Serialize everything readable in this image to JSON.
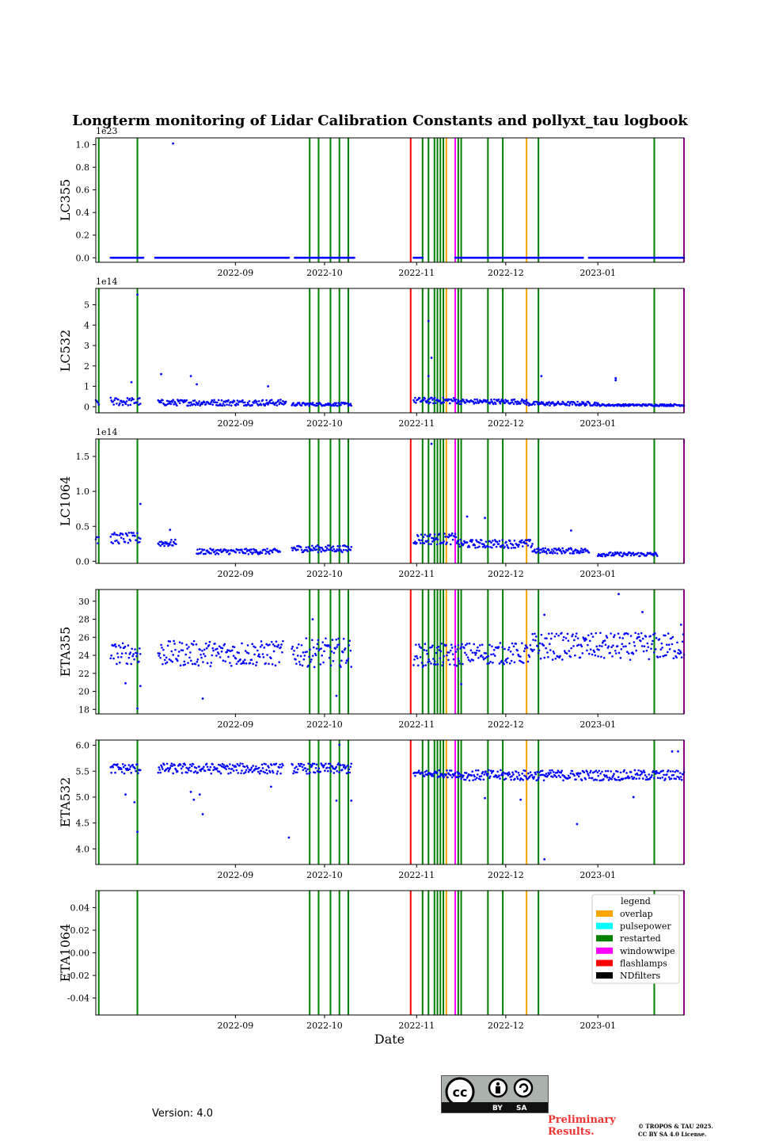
{
  "chart_data": {
    "type": "scatter",
    "title": "Longterm monitoring of Lidar Calibration Constants and pollyxt_tau logbook",
    "xlabel": "Date",
    "x_start": "2022-07-16",
    "x_end": "2023-01-30",
    "x_ticks": [
      {
        "date": "2022-09-01",
        "label": "2022-09"
      },
      {
        "date": "2022-10-01",
        "label": "2022-10"
      },
      {
        "date": "2022-11-01",
        "label": "2022-11"
      },
      {
        "date": "2022-12-01",
        "label": "2022-12"
      },
      {
        "date": "2023-01-01",
        "label": "2023-01"
      }
    ],
    "point_color": "#0000ff",
    "legend": {
      "title": "legend",
      "location": "upper right of last panel",
      "entries": [
        {
          "label": "overlap",
          "color": "#ffa500"
        },
        {
          "label": "pulsepower",
          "color": "#00ffff"
        },
        {
          "label": "restarted",
          "color": "#008000"
        },
        {
          "label": "windowwipe",
          "color": "#ff00ff"
        },
        {
          "label": "flashlamps",
          "color": "#ff0000"
        },
        {
          "label": "NDfilters",
          "color": "#000000"
        }
      ]
    },
    "logbook_events": [
      {
        "date": "2022-07-17",
        "type": "restarted"
      },
      {
        "date": "2022-07-30",
        "type": "restarted"
      },
      {
        "date": "2022-09-26",
        "type": "restarted"
      },
      {
        "date": "2022-09-29",
        "type": "restarted"
      },
      {
        "date": "2022-10-03",
        "type": "restarted"
      },
      {
        "date": "2022-10-06",
        "type": "restarted"
      },
      {
        "date": "2022-10-09",
        "type": "restarted"
      },
      {
        "date": "2022-10-30",
        "type": "flashlamps"
      },
      {
        "date": "2022-11-03",
        "type": "restarted"
      },
      {
        "date": "2022-11-05",
        "type": "restarted"
      },
      {
        "date": "2022-11-07",
        "type": "restarted"
      },
      {
        "date": "2022-11-08",
        "type": "restarted"
      },
      {
        "date": "2022-11-09",
        "type": "restarted"
      },
      {
        "date": "2022-11-10",
        "type": "restarted"
      },
      {
        "date": "2022-11-11",
        "type": "overlap"
      },
      {
        "date": "2022-11-14",
        "type": "windowwipe"
      },
      {
        "date": "2022-11-15",
        "type": "restarted"
      },
      {
        "date": "2022-11-16",
        "type": "restarted"
      },
      {
        "date": "2022-11-25",
        "type": "restarted"
      },
      {
        "date": "2022-11-30",
        "type": "restarted"
      },
      {
        "date": "2022-12-08",
        "type": "overlap"
      },
      {
        "date": "2022-12-12",
        "type": "restarted"
      },
      {
        "date": "2023-01-20",
        "type": "restarted"
      },
      {
        "date": "2023-01-30",
        "type": "windowwipe"
      }
    ],
    "panels": [
      {
        "ylabel": "LC355",
        "ylim": [
          -0.04,
          1.06
        ],
        "yticks": [
          0.0,
          0.2,
          0.4,
          0.6,
          0.8,
          1.0
        ],
        "tick_decimals": 1,
        "offset_label": "1e23",
        "segments": [
          {
            "start": "2022-07-21",
            "end": "2022-08-01",
            "base": 0.0,
            "spread": 0
          },
          {
            "start": "2022-08-05",
            "end": "2022-09-19",
            "base": 0.0,
            "spread": 0
          },
          {
            "start": "2022-09-21",
            "end": "2022-10-11",
            "base": 0.0,
            "spread": 0
          },
          {
            "start": "2022-10-31",
            "end": "2022-11-03",
            "base": 0.0,
            "spread": 0
          },
          {
            "start": "2022-11-14",
            "end": "2022-12-27",
            "base": 0.0,
            "spread": 0
          },
          {
            "start": "2022-12-29",
            "end": "2023-01-30",
            "base": 0.0,
            "spread": 0
          }
        ],
        "outliers": [
          {
            "date": "2022-08-11",
            "value": 1.01
          }
        ]
      },
      {
        "ylabel": "LC532",
        "ylim": [
          -0.3,
          5.8
        ],
        "yticks": [
          0,
          1,
          2,
          3,
          4,
          5
        ],
        "tick_decimals": 0,
        "offset_label": "1e14",
        "segments": [
          {
            "start": "2022-07-16",
            "end": "2022-07-17",
            "base": 0.2,
            "spread": 0.15
          },
          {
            "start": "2022-07-21",
            "end": "2022-07-31",
            "base": 0.25,
            "spread": 0.2
          },
          {
            "start": "2022-08-06",
            "end": "2022-09-18",
            "base": 0.2,
            "spread": 0.15
          },
          {
            "start": "2022-09-20",
            "end": "2022-10-10",
            "base": 0.12,
            "spread": 0.08
          },
          {
            "start": "2022-10-31",
            "end": "2022-11-15",
            "base": 0.3,
            "spread": 0.15
          },
          {
            "start": "2022-11-15",
            "end": "2022-12-08",
            "base": 0.25,
            "spread": 0.12
          },
          {
            "start": "2022-12-08",
            "end": "2023-01-01",
            "base": 0.15,
            "spread": 0.1
          },
          {
            "start": "2023-01-01",
            "end": "2023-01-30",
            "base": 0.08,
            "spread": 0.05
          }
        ],
        "outliers": [
          {
            "date": "2022-07-30",
            "value": 5.5
          },
          {
            "date": "2022-11-05",
            "value": 4.2
          },
          {
            "date": "2022-11-06",
            "value": 2.4
          },
          {
            "date": "2022-11-05",
            "value": 1.5
          },
          {
            "date": "2022-08-07",
            "value": 1.6
          },
          {
            "date": "2022-08-17",
            "value": 1.5
          },
          {
            "date": "2022-08-19",
            "value": 1.1
          },
          {
            "date": "2022-09-12",
            "value": 1.0
          },
          {
            "date": "2022-12-13",
            "value": 1.5
          },
          {
            "date": "2023-01-07",
            "value": 1.4
          },
          {
            "date": "2023-01-07",
            "value": 1.3
          },
          {
            "date": "2022-07-28",
            "value": 1.2
          }
        ]
      },
      {
        "ylabel": "LC1064",
        "ylim": [
          -0.03,
          1.75
        ],
        "yticks": [
          0.0,
          0.5,
          1.0,
          1.5
        ],
        "tick_decimals": 1,
        "offset_label": "1e14",
        "segments": [
          {
            "start": "2022-07-16",
            "end": "2022-07-17",
            "base": 0.35,
            "spread": 0.15
          },
          {
            "start": "2022-07-21",
            "end": "2022-07-31",
            "base": 0.33,
            "spread": 0.08
          },
          {
            "start": "2022-08-06",
            "end": "2022-08-12",
            "base": 0.26,
            "spread": 0.05
          },
          {
            "start": "2022-08-19",
            "end": "2022-09-16",
            "base": 0.14,
            "spread": 0.04
          },
          {
            "start": "2022-09-20",
            "end": "2022-10-10",
            "base": 0.18,
            "spread": 0.05
          },
          {
            "start": "2022-10-31",
            "end": "2022-11-15",
            "base": 0.32,
            "spread": 0.08
          },
          {
            "start": "2022-11-15",
            "end": "2022-12-10",
            "base": 0.25,
            "spread": 0.06
          },
          {
            "start": "2022-12-10",
            "end": "2022-12-29",
            "base": 0.15,
            "spread": 0.04
          },
          {
            "start": "2023-01-01",
            "end": "2023-01-21",
            "base": 0.1,
            "spread": 0.03
          }
        ],
        "outliers": [
          {
            "date": "2022-07-31",
            "value": 0.82
          },
          {
            "date": "2022-11-06",
            "value": 1.68
          },
          {
            "date": "2022-11-18",
            "value": 0.64
          },
          {
            "date": "2022-11-24",
            "value": 0.62
          },
          {
            "date": "2022-12-23",
            "value": 0.44
          },
          {
            "date": "2022-08-10",
            "value": 0.45
          }
        ]
      },
      {
        "ylabel": "ETA355",
        "ylim": [
          17.5,
          31.3
        ],
        "yticks": [
          18,
          20,
          22,
          24,
          26,
          28,
          30
        ],
        "tick_decimals": 0,
        "offset_label": "",
        "segments": [
          {
            "start": "2022-07-21",
            "end": "2022-07-31",
            "base": 24.2,
            "spread": 1.2
          },
          {
            "start": "2022-08-06",
            "end": "2022-09-17",
            "base": 24.2,
            "spread": 1.4
          },
          {
            "start": "2022-09-20",
            "end": "2022-10-10",
            "base": 24.3,
            "spread": 1.6
          },
          {
            "start": "2022-10-31",
            "end": "2022-11-15",
            "base": 24.0,
            "spread": 1.3
          },
          {
            "start": "2022-11-15",
            "end": "2022-12-10",
            "base": 24.2,
            "spread": 1.2
          },
          {
            "start": "2022-12-10",
            "end": "2023-01-30",
            "base": 25.0,
            "spread": 1.5
          }
        ],
        "outliers": [
          {
            "date": "2022-07-30",
            "value": 18.1
          },
          {
            "date": "2022-07-31",
            "value": 20.6
          },
          {
            "date": "2022-07-26",
            "value": 20.9
          },
          {
            "date": "2022-08-21",
            "value": 19.2
          },
          {
            "date": "2022-10-05",
            "value": 19.5
          },
          {
            "date": "2022-11-16",
            "value": 20.8
          },
          {
            "date": "2022-09-27",
            "value": 28.0
          },
          {
            "date": "2022-12-14",
            "value": 28.5
          },
          {
            "date": "2023-01-08",
            "value": 30.8
          },
          {
            "date": "2023-01-16",
            "value": 28.8
          },
          {
            "date": "2023-01-29",
            "value": 27.4
          }
        ]
      },
      {
        "ylabel": "ETA532",
        "ylim": [
          3.7,
          6.1
        ],
        "yticks": [
          4.0,
          4.5,
          5.0,
          5.5,
          6.0
        ],
        "tick_decimals": 1,
        "offset_label": "",
        "segments": [
          {
            "start": "2022-07-21",
            "end": "2022-07-31",
            "base": 5.55,
            "spread": 0.1
          },
          {
            "start": "2022-08-06",
            "end": "2022-09-17",
            "base": 5.55,
            "spread": 0.1
          },
          {
            "start": "2022-09-20",
            "end": "2022-10-10",
            "base": 5.55,
            "spread": 0.1
          },
          {
            "start": "2022-10-31",
            "end": "2022-11-15",
            "base": 5.45,
            "spread": 0.07
          },
          {
            "start": "2022-11-15",
            "end": "2023-01-30",
            "base": 5.42,
            "spread": 0.1
          }
        ],
        "outliers": [
          {
            "date": "2022-07-30",
            "value": 4.33
          },
          {
            "date": "2022-07-29",
            "value": 4.9
          },
          {
            "date": "2022-07-26",
            "value": 5.05
          },
          {
            "date": "2022-08-17",
            "value": 5.1
          },
          {
            "date": "2022-08-20",
            "value": 5.05
          },
          {
            "date": "2022-08-21",
            "value": 4.67
          },
          {
            "date": "2022-08-18",
            "value": 4.95
          },
          {
            "date": "2022-09-13",
            "value": 5.2
          },
          {
            "date": "2022-09-19",
            "value": 4.22
          },
          {
            "date": "2022-10-05",
            "value": 4.93
          },
          {
            "date": "2022-10-10",
            "value": 4.93
          },
          {
            "date": "2022-10-06",
            "value": 6.01
          },
          {
            "date": "2022-11-24",
            "value": 4.98
          },
          {
            "date": "2022-12-06",
            "value": 4.95
          },
          {
            "date": "2022-12-14",
            "value": 3.8
          },
          {
            "date": "2022-12-25",
            "value": 4.48
          },
          {
            "date": "2023-01-26",
            "value": 5.88
          },
          {
            "date": "2023-01-28",
            "value": 5.88
          },
          {
            "date": "2023-01-13",
            "value": 5.0
          }
        ]
      },
      {
        "ylabel": "ETA1064",
        "ylim": [
          -0.055,
          0.055
        ],
        "yticks": [
          -0.04,
          -0.02,
          0.0,
          0.02,
          0.04
        ],
        "tick_decimals": 2,
        "offset_label": "",
        "segments": [],
        "outliers": []
      }
    ]
  },
  "footer": {
    "version": "Version: 4.0",
    "cc_by": "BY",
    "cc_sa": "SA",
    "preliminary_line1": "Preliminary",
    "preliminary_line2": "Results.",
    "copyright_line1": "© TROPOS & TAU 2025.",
    "copyright_line2": "CC BY SA 4.0 License."
  }
}
